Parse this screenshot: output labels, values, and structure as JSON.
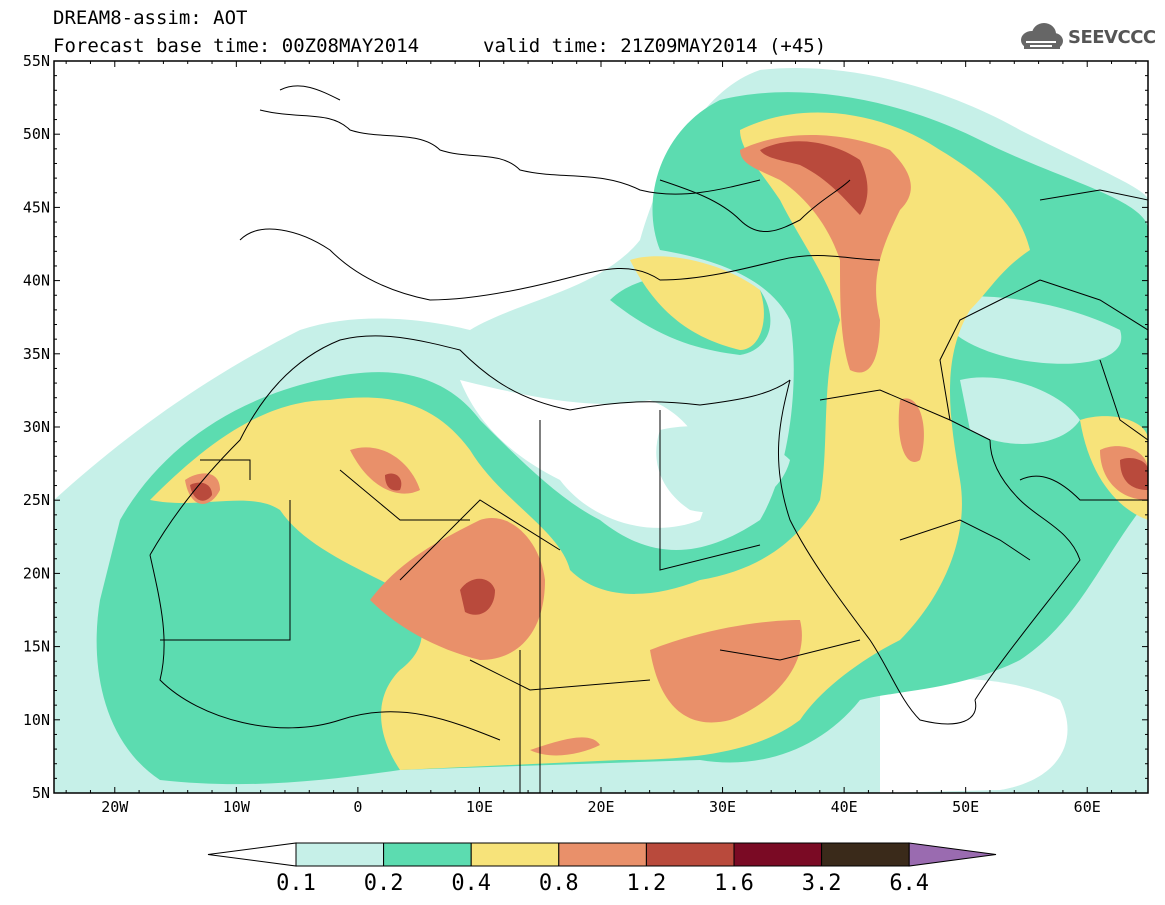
{
  "header": {
    "title": "DREAM8-assim: AOT",
    "base_time": "Forecast base time: 00Z08MAY2014",
    "valid_time": "valid time: 21Z09MAY2014 (+45)"
  },
  "brand": {
    "name": "SEEVCCC",
    "icon": "cloud-logo-icon"
  },
  "map": {
    "lat_ticks": [
      "55N",
      "50N",
      "45N",
      "40N",
      "35N",
      "30N",
      "25N",
      "20N",
      "15N",
      "10N",
      "5N"
    ],
    "lon_ticks": [
      "20W",
      "10W",
      "0",
      "10E",
      "20E",
      "30E",
      "40E",
      "50E",
      "60E"
    ],
    "lon_range": [
      -25,
      65
    ],
    "lat_range": [
      5,
      55
    ]
  },
  "colorbar": {
    "labels": [
      "0.1",
      "0.2",
      "0.4",
      "0.8",
      "1.2",
      "1.6",
      "3.2",
      "6.4"
    ],
    "colors": [
      "#ffffff",
      "#c6f0e8",
      "#5cdcb0",
      "#f7e37a",
      "#e9906a",
      "#b94a3c",
      "#7a0a24",
      "#3a2a1a",
      "#9a6bb0"
    ]
  },
  "chart_data": {
    "type": "heatmap",
    "title": "DREAM8-assim: AOT",
    "variable": "Aerosol Optical Thickness",
    "levels": [
      0.1,
      0.2,
      0.4,
      0.8,
      1.2,
      1.6,
      3.2,
      6.4
    ],
    "xlim": [
      -25,
      65
    ],
    "ylim": [
      5,
      55
    ],
    "x_ticks": [
      "20W",
      "10W",
      "0",
      "10E",
      "20E",
      "30E",
      "40E",
      "50E",
      "60E"
    ],
    "y_ticks": [
      "55N",
      "50N",
      "45N",
      "40N",
      "35N",
      "30N",
      "25N",
      "20N",
      "15N",
      "10N",
      "5N"
    ],
    "maxima": [
      {
        "lon": 10,
        "lat": 18,
        "value": 1.2
      },
      {
        "lon": 38,
        "lat": 48,
        "value": 1.2
      },
      {
        "lon": 30,
        "lat": 14,
        "value": 0.8
      },
      {
        "lon": 3,
        "lat": 26,
        "value": 0.8
      },
      {
        "lon": -13,
        "lat": 25,
        "value": 0.8
      },
      {
        "lon": 63,
        "lat": 26,
        "value": 0.8
      }
    ]
  }
}
